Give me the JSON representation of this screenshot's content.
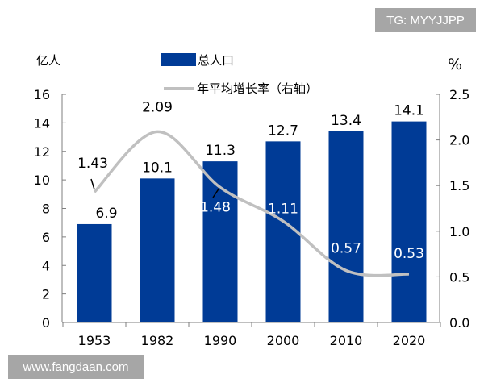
{
  "watermarks": {
    "top_right": "TG: MYYJJPP",
    "bottom_left": "www.fangdaan.com"
  },
  "chart_data": {
    "type": "bar+line",
    "categories": [
      "1953",
      "1982",
      "1990",
      "2000",
      "2010",
      "2020"
    ],
    "left_axis": {
      "label": "亿人",
      "range": [
        0,
        16
      ],
      "ticks": [
        "0",
        "2",
        "4",
        "6",
        "8",
        "10",
        "12",
        "14",
        "16"
      ]
    },
    "right_axis": {
      "label": "%",
      "range": [
        0,
        2.5
      ],
      "ticks": [
        "0.0",
        "0.5",
        "1.0",
        "1.5",
        "2.0",
        "2.5"
      ]
    },
    "series": [
      {
        "name": "总人口",
        "type": "bar",
        "axis": "left",
        "values": [
          6.9,
          10.1,
          11.3,
          12.7,
          13.4,
          14.1
        ],
        "labels": [
          "6.9",
          "10.1",
          "11.3",
          "12.7",
          "13.4",
          "14.1"
        ],
        "color": "#003B96"
      },
      {
        "name": "年平均增长率（右轴）",
        "type": "line",
        "axis": "right",
        "values": [
          1.43,
          2.09,
          1.48,
          1.11,
          0.57,
          0.53
        ],
        "labels": [
          "1.43",
          "2.09",
          "1.48",
          "1.11",
          "0.57",
          "0.53"
        ],
        "color": "#c0c0c0"
      }
    ],
    "legend": "top-center",
    "grid": false
  }
}
